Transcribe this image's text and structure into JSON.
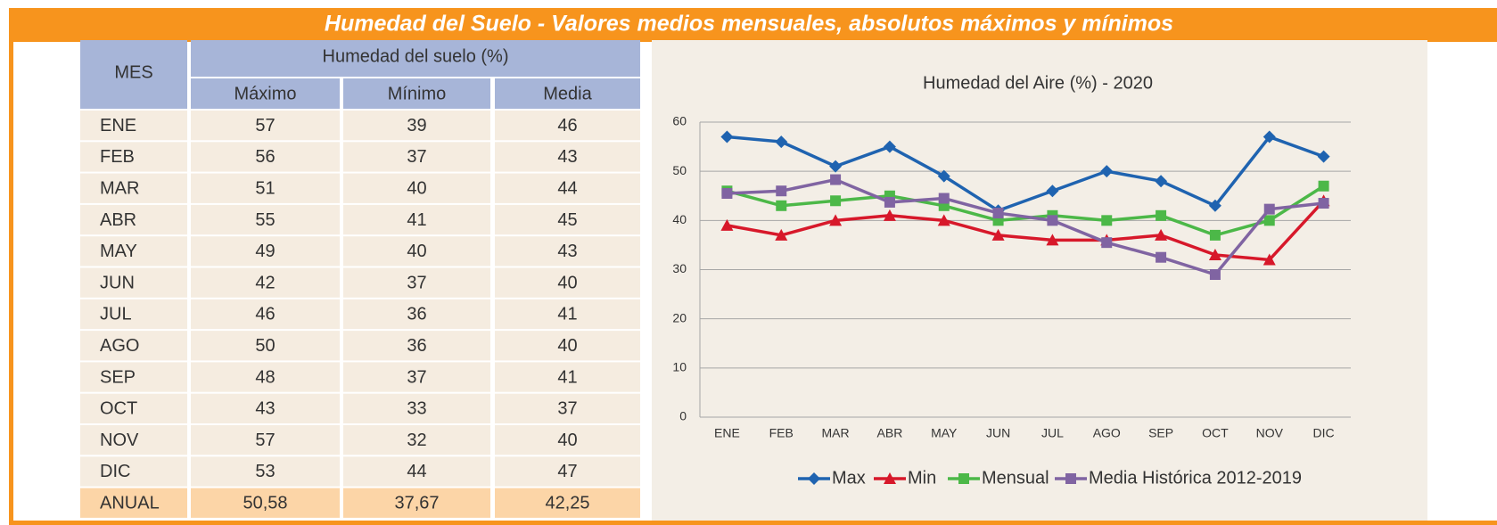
{
  "header": {
    "title": "Humedad del Suelo - Valores medios mensuales, absolutos máximos y mínimos"
  },
  "table": {
    "headers": [
      "MES",
      "Humedad del suelo (%)",
      "Máximo",
      "Mínimo",
      "Media"
    ],
    "rows": [
      [
        "ENE",
        "57",
        "39",
        "46"
      ],
      [
        "FEB",
        "56",
        "37",
        "43"
      ],
      [
        "MAR",
        "51",
        "40",
        "44"
      ],
      [
        "ABR",
        "55",
        "41",
        "45"
      ],
      [
        "MAY",
        "49",
        "40",
        "43"
      ],
      [
        "JUN",
        "42",
        "37",
        "40"
      ],
      [
        "JUL",
        "46",
        "36",
        "41"
      ],
      [
        "AGO",
        "50",
        "36",
        "40"
      ],
      [
        "SEP",
        "48",
        "37",
        "41"
      ],
      [
        "OCT",
        "43",
        "33",
        "37"
      ],
      [
        "NOV",
        "57",
        "32",
        "40"
      ],
      [
        "DIC",
        "53",
        "44",
        "47"
      ],
      [
        "ANUAL",
        "50,58",
        "37,67",
        "42,25"
      ]
    ]
  },
  "chart_data": {
    "type": "line",
    "title": "Humedad del Aire  (%) - 2020",
    "categories": [
      "ENE",
      "FEB",
      "MAR",
      "ABR",
      "MAY",
      "JUN",
      "JUL",
      "AGO",
      "SEP",
      "OCT",
      "NOV",
      "DIC"
    ],
    "ylim": [
      0,
      60
    ],
    "yticks": [
      0,
      10,
      20,
      30,
      40,
      50,
      60
    ],
    "grid": true,
    "legend": "bottom",
    "series": [
      {
        "name": "Max",
        "color": "#1f63b0",
        "marker": "diamond",
        "values": [
          57,
          56,
          51,
          55,
          49,
          42,
          46,
          50,
          48,
          43,
          57,
          53
        ]
      },
      {
        "name": "Min",
        "color": "#d7182a",
        "marker": "triangle",
        "values": [
          39,
          37,
          40,
          41,
          40,
          37,
          36,
          36,
          37,
          33,
          32,
          44
        ]
      },
      {
        "name": "Mensual",
        "color": "#4cb848",
        "marker": "square",
        "values": [
          46,
          43,
          44,
          45,
          43,
          40,
          41,
          40,
          41,
          37,
          40,
          47
        ]
      },
      {
        "name": "Media Histórica 2012-2019",
        "color": "#8064a2",
        "marker": "square",
        "values": [
          45.5,
          46,
          48.3,
          43.7,
          44.5,
          41.5,
          40,
          35.5,
          32.5,
          29,
          42.3,
          43.5
        ]
      }
    ]
  }
}
